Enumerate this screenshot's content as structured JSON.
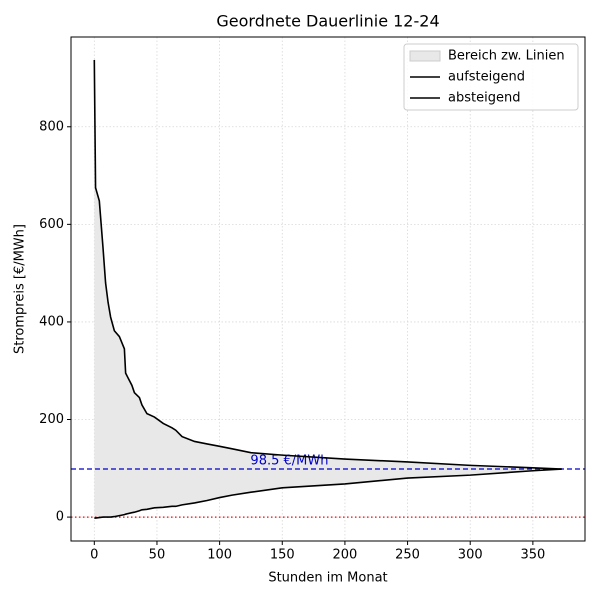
{
  "chart_data": {
    "type": "line",
    "title": "Geordnete Dauerlinie 12-24",
    "xlabel": "Stunden im Monat",
    "ylabel": "Strompreis [€/MWh]",
    "x": [
      0,
      1,
      4,
      7,
      9,
      11,
      13,
      16,
      20,
      24,
      25,
      30,
      32,
      36,
      38,
      42,
      48,
      55,
      62,
      65,
      70,
      80,
      90,
      100,
      110,
      125,
      150,
      200,
      250,
      300,
      350,
      373
    ],
    "series": [
      {
        "name": "aufsteigend",
        "color": "#000000",
        "values": [
          -2,
          -2,
          -1,
          0,
          0,
          0,
          0,
          1,
          3,
          5,
          6,
          9,
          10,
          13,
          15,
          16,
          19,
          20,
          22,
          22,
          25,
          29,
          34,
          40,
          45,
          51,
          60,
          68,
          80,
          86,
          95,
          98.5
        ]
      },
      {
        "name": "absteigend",
        "color": "#000000",
        "values": [
          937,
          675,
          648,
          550,
          480,
          440,
          410,
          382,
          370,
          345,
          295,
          270,
          255,
          245,
          230,
          212,
          205,
          192,
          183,
          178,
          165,
          155,
          150,
          145,
          140,
          132,
          127,
          119,
          113,
          106,
          101,
          98.5
        ]
      }
    ],
    "fill": {
      "name": "Bereich zw. Linien",
      "color": "#e8e8e8"
    },
    "hlines": [
      {
        "value": 98.5,
        "label": "98.5 €/MWh",
        "color": "#0000cc",
        "style": "dashed"
      },
      {
        "value": 0,
        "color": "#ff0000",
        "style": "dotted"
      }
    ],
    "xlim": [
      -18.6,
      391.6
    ],
    "xticks": [
      0,
      50,
      100,
      150,
      200,
      250,
      300,
      350
    ],
    "ylim": [
      -49,
      984
    ],
    "yticks": [
      0,
      200,
      400,
      600,
      800
    ],
    "grid": true,
    "legend": "upper right"
  }
}
